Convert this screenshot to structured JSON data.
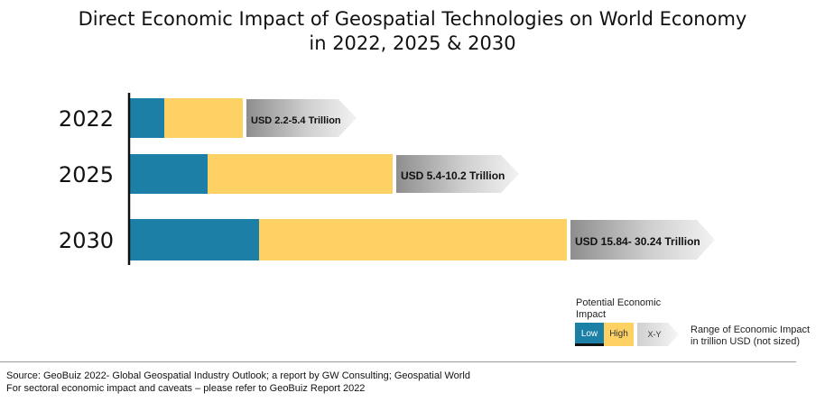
{
  "title_line1": "Direct Economic Impact of Geospatial Technologies on World Economy",
  "title_line2": "in 2022, 2025 & 2030",
  "chart_data": {
    "type": "bar",
    "orientation": "horizontal",
    "stacked": true,
    "categories": [
      "2022",
      "2025",
      "2030"
    ],
    "series": [
      {
        "name": "Low",
        "values": [
          2.2,
          5.4,
          15.84
        ],
        "color": "#1b7fa6"
      },
      {
        "name": "High",
        "values": [
          5.4,
          10.2,
          30.24
        ],
        "color": "#fdd163"
      }
    ],
    "range_labels": [
      "USD 2.2-5.4 Trillion",
      "USD 5.4-10.2 Trillion",
      "USD 15.84- 30.24 Trillion"
    ],
    "note": "not sized",
    "grid": false
  },
  "legend": {
    "title": "Potential Economic Impact",
    "low": "Low",
    "high": "High",
    "range_symbol": "X-Y",
    "range_text_line1": "Range of Economic Impact",
    "range_text_line2": "in trillion USD (not sized)"
  },
  "footer": {
    "line1": "Source: GeoBuiz 2022-  Global Geospatial Industry Outlook; a report by GW Consulting; Geospatial World",
    "line2": "For sectoral economic impact  and caveats  – please refer to GeoBuiz Report 2022"
  }
}
